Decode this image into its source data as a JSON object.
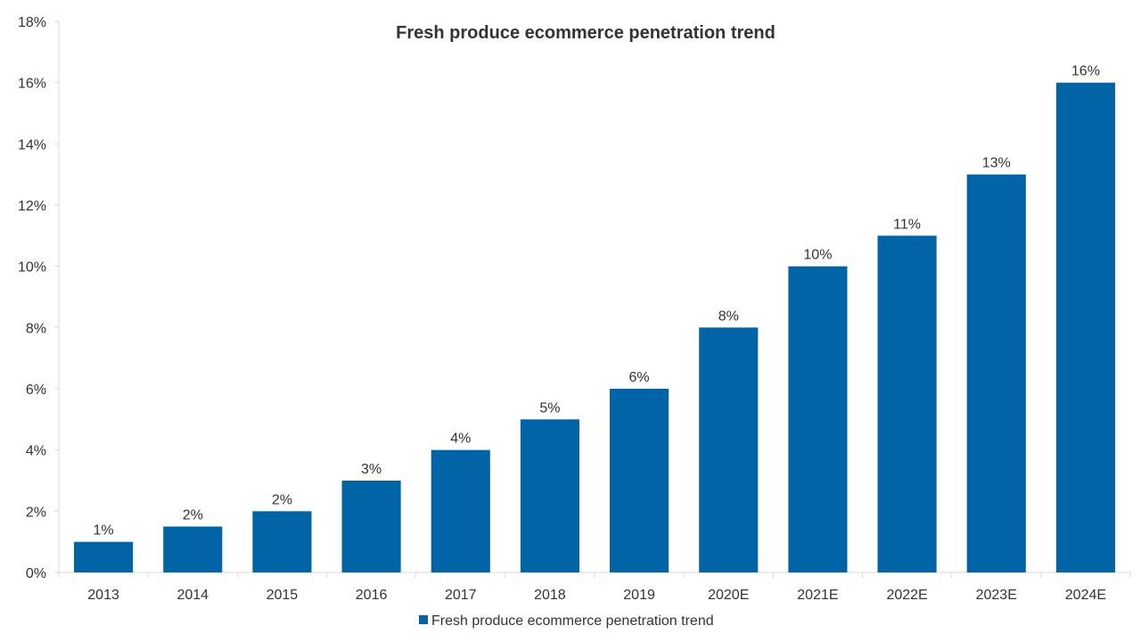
{
  "chart_data": {
    "type": "bar",
    "title": "Fresh produce ecommerce penetration trend",
    "xlabel": "",
    "ylabel": "",
    "categories": [
      "2013",
      "2014",
      "2015",
      "2016",
      "2017",
      "2018",
      "2019",
      "2020E",
      "2021E",
      "2022E",
      "2023E",
      "2024E"
    ],
    "series": [
      {
        "name": "Fresh produce ecommerce penetration trend",
        "values": [
          1,
          1.5,
          2,
          3,
          4,
          5,
          6,
          8,
          10,
          11,
          13,
          16
        ],
        "labels": [
          "1%",
          "2%",
          "2%",
          "3%",
          "4%",
          "5%",
          "6%",
          "8%",
          "10%",
          "11%",
          "13%",
          "16%"
        ],
        "color": "#0064a7"
      }
    ],
    "ylim": [
      0,
      18
    ],
    "yticks": [
      0,
      2,
      4,
      6,
      8,
      10,
      12,
      14,
      16,
      18
    ],
    "ytick_labels": [
      "0%",
      "2%",
      "4%",
      "6%",
      "8%",
      "10%",
      "12%",
      "14%",
      "16%",
      "18%"
    ],
    "grid": false,
    "legend": "bottom-center",
    "colors": {
      "bar": "#0064a7",
      "axis": "#d9d9d9",
      "text": "#333333"
    }
  }
}
